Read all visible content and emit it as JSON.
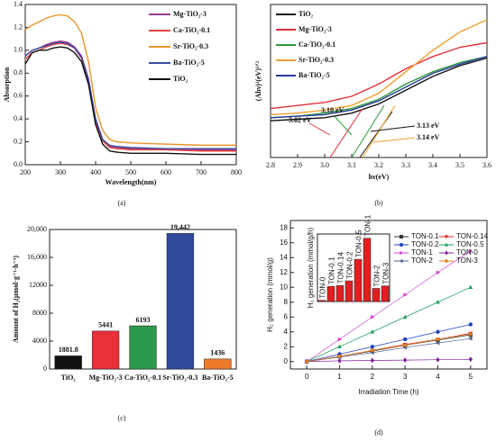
{
  "chart_data": [
    {
      "type": "line",
      "caption": "(a)",
      "x_label": "Wavelength(nm)",
      "y_label": "Absorption",
      "xlim": [
        200,
        800
      ],
      "xticks": [
        200,
        300,
        400,
        500,
        600,
        700,
        800
      ],
      "ylim": [
        0,
        1.4
      ],
      "yticks": [
        {
          "value": 0,
          "label": "0.0"
        },
        0.2,
        0.4,
        0.6,
        0.8,
        {
          "value": 1,
          "label": "1.0"
        },
        1.2,
        1.4
      ],
      "x": [
        200,
        220,
        240,
        260,
        280,
        300,
        320,
        340,
        360,
        380,
        400,
        420,
        440,
        460,
        500,
        600,
        700,
        800
      ],
      "legend": "upper right",
      "series": [
        {
          "name": "Mg-TiO₂-3",
          "color": "#9b3d8f",
          "values": [
            0.95,
            1.0,
            1.02,
            1.05,
            1.07,
            1.08,
            1.07,
            1.03,
            0.95,
            0.75,
            0.4,
            0.22,
            0.16,
            0.15,
            0.14,
            0.14,
            0.13,
            0.13
          ]
        },
        {
          "name": "Ca-TiO₂-0.1",
          "color": "#e0403a",
          "values": [
            0.92,
            0.98,
            1.0,
            1.03,
            1.05,
            1.06,
            1.05,
            1.02,
            0.93,
            0.72,
            0.38,
            0.21,
            0.15,
            0.14,
            0.13,
            0.13,
            0.12,
            0.12
          ]
        },
        {
          "name": "Sr-TiO₂-0.3",
          "color": "#e8962a",
          "values": [
            1.18,
            1.22,
            1.25,
            1.28,
            1.3,
            1.31,
            1.3,
            1.25,
            1.15,
            0.9,
            0.5,
            0.3,
            0.22,
            0.2,
            0.19,
            0.18,
            0.17,
            0.17
          ]
        },
        {
          "name": "Ba-TiO₂-5",
          "color": "#3a4aa0",
          "values": [
            0.95,
            1.0,
            1.02,
            1.04,
            1.06,
            1.07,
            1.06,
            1.02,
            0.94,
            0.74,
            0.4,
            0.22,
            0.17,
            0.16,
            0.15,
            0.14,
            0.14,
            0.14
          ]
        },
        {
          "name": "TiO₂",
          "color": "#111111",
          "values": [
            0.88,
            0.98,
            1.0,
            1.0,
            1.02,
            1.03,
            1.02,
            0.98,
            0.9,
            0.7,
            0.35,
            0.18,
            0.12,
            0.11,
            0.1,
            0.1,
            0.09,
            0.09
          ]
        }
      ]
    },
    {
      "type": "line",
      "caption": "(b)",
      "x_label": "hν(eV)",
      "y_label": "(Ahν)²(eV)¹ᐟ²",
      "xlim": [
        2.8,
        3.6
      ],
      "xticks": [
        2.8,
        2.9,
        {
          "value": 3,
          "label": "3.0"
        },
        3.1,
        3.2,
        3.3,
        3.4,
        3.5,
        3.6
      ],
      "ylim": [
        0,
        5
      ],
      "x": [
        2.8,
        2.9,
        3.0,
        3.1,
        3.2,
        3.3,
        3.4,
        3.5,
        3.6
      ],
      "legend": "upper left",
      "annotations": [
        "3.02 eV",
        "3.10 eV",
        "3.13 eV",
        "3.14 eV"
      ],
      "series": [
        {
          "name": "TiO₂",
          "color": "#111111",
          "values": [
            1.2,
            1.25,
            1.3,
            1.45,
            1.75,
            2.2,
            2.65,
            3.0,
            3.25
          ]
        },
        {
          "name": "Mg-TiO₂-3",
          "color": "#e0303a",
          "values": [
            1.6,
            1.7,
            1.8,
            2.0,
            2.4,
            2.9,
            3.3,
            3.6,
            3.75
          ]
        },
        {
          "name": "Ca-TiO₂-0.1",
          "color": "#2a9a3a",
          "values": [
            1.3,
            1.35,
            1.45,
            1.6,
            1.9,
            2.4,
            2.8,
            3.1,
            3.3
          ]
        },
        {
          "name": "Sr-TiO₂-0.3",
          "color": "#f0a030",
          "values": [
            1.4,
            1.45,
            1.55,
            1.7,
            2.1,
            2.8,
            3.5,
            4.1,
            4.5
          ]
        },
        {
          "name": "Ba-TiO₂-5",
          "color": "#2a3a9a",
          "values": [
            1.3,
            1.35,
            1.4,
            1.55,
            1.85,
            2.3,
            2.75,
            3.05,
            3.3
          ]
        }
      ]
    },
    {
      "type": "bar",
      "caption": "(c)",
      "y_label": "Amount of H₂(μmol·g⁻¹·h⁻¹)",
      "categories": [
        "TiO₂",
        "Mg-TiO₂-3",
        "Ca-TiO₂-0.1",
        "Sr-TiO₂-0.3",
        "Ba-TiO₂-5"
      ],
      "values": [
        1881.8,
        5441,
        6193,
        19442,
        1436
      ],
      "value_labels": [
        "1881.8",
        "5441",
        "6193",
        "19,442",
        "1436"
      ],
      "colors": [
        "#111111",
        "#e8303a",
        "#2a9a4a",
        "#2e4a9a",
        "#f07a2a"
      ],
      "ylim": [
        0,
        20000
      ],
      "yticks": [
        0,
        4000,
        8000,
        12000,
        {
          "value": 16000,
          "label": "16,000"
        },
        {
          "value": 20000,
          "label": "20,000"
        }
      ]
    },
    {
      "type": "line",
      "caption": "(d)",
      "x_label": "Irradiation Time (h)",
      "y_label": "H₂ generation (mmol/g)",
      "xlim": [
        -0.5,
        5.5
      ],
      "xticks": [
        0,
        1,
        2,
        3,
        4,
        5
      ],
      "ylim": [
        -1,
        19
      ],
      "yticks": [
        0,
        2,
        4,
        6,
        8,
        10,
        12,
        14,
        16,
        18
      ],
      "x": [
        0,
        1,
        2,
        3,
        4,
        5
      ],
      "legend": "upper right",
      "series": [
        {
          "name": "TON-0.1",
          "color": "#333333",
          "marker": "square",
          "values": [
            0,
            0.7,
            1.4,
            2.2,
            2.9,
            3.6
          ]
        },
        {
          "name": "TON-0.14",
          "color": "#e02020",
          "marker": "triangle-down",
          "values": [
            0,
            0.7,
            1.5,
            2.3,
            3.0,
            3.8
          ]
        },
        {
          "name": "TON-0.2",
          "color": "#2040c0",
          "marker": "circle",
          "values": [
            0,
            1.0,
            2.0,
            3.0,
            4.0,
            5.0
          ]
        },
        {
          "name": "TON-0.5",
          "color": "#20a060",
          "marker": "triangle-up",
          "values": [
            0,
            2.0,
            4.0,
            6.0,
            8.0,
            10.0
          ]
        },
        {
          "name": "TON-1",
          "color": "#d040d0",
          "marker": "triangle-right",
          "values": [
            0,
            3.0,
            6.0,
            9.0,
            12.0,
            14.9
          ]
        },
        {
          "name": "TON-0",
          "color": "#8020a0",
          "marker": "diamond",
          "values": [
            0,
            0.1,
            0.15,
            0.2,
            0.25,
            0.3
          ]
        },
        {
          "name": "TON-2",
          "color": "#506090",
          "marker": "triangle-left",
          "values": [
            0,
            0.6,
            1.2,
            1.9,
            2.5,
            3.1
          ]
        },
        {
          "name": "TON-3",
          "color": "#e08020",
          "marker": "hexagon",
          "values": [
            0,
            0.7,
            1.5,
            2.2,
            3.0,
            3.7
          ]
        }
      ]
    },
    {
      "type": "bar",
      "y_label": "H₂ generation (mmol/g/h)",
      "categories": [
        "TON-0",
        "TON-0.1",
        "TON-0.14",
        "TON-0.2",
        "TON-0.5",
        "TON-1",
        "TON-2",
        "TON-3"
      ],
      "values": [
        0.06,
        0.72,
        0.76,
        0.98,
        2.0,
        3.0,
        0.62,
        0.74
      ],
      "color": "#e02020",
      "ylim": [
        0,
        3.2
      ]
    }
  ]
}
